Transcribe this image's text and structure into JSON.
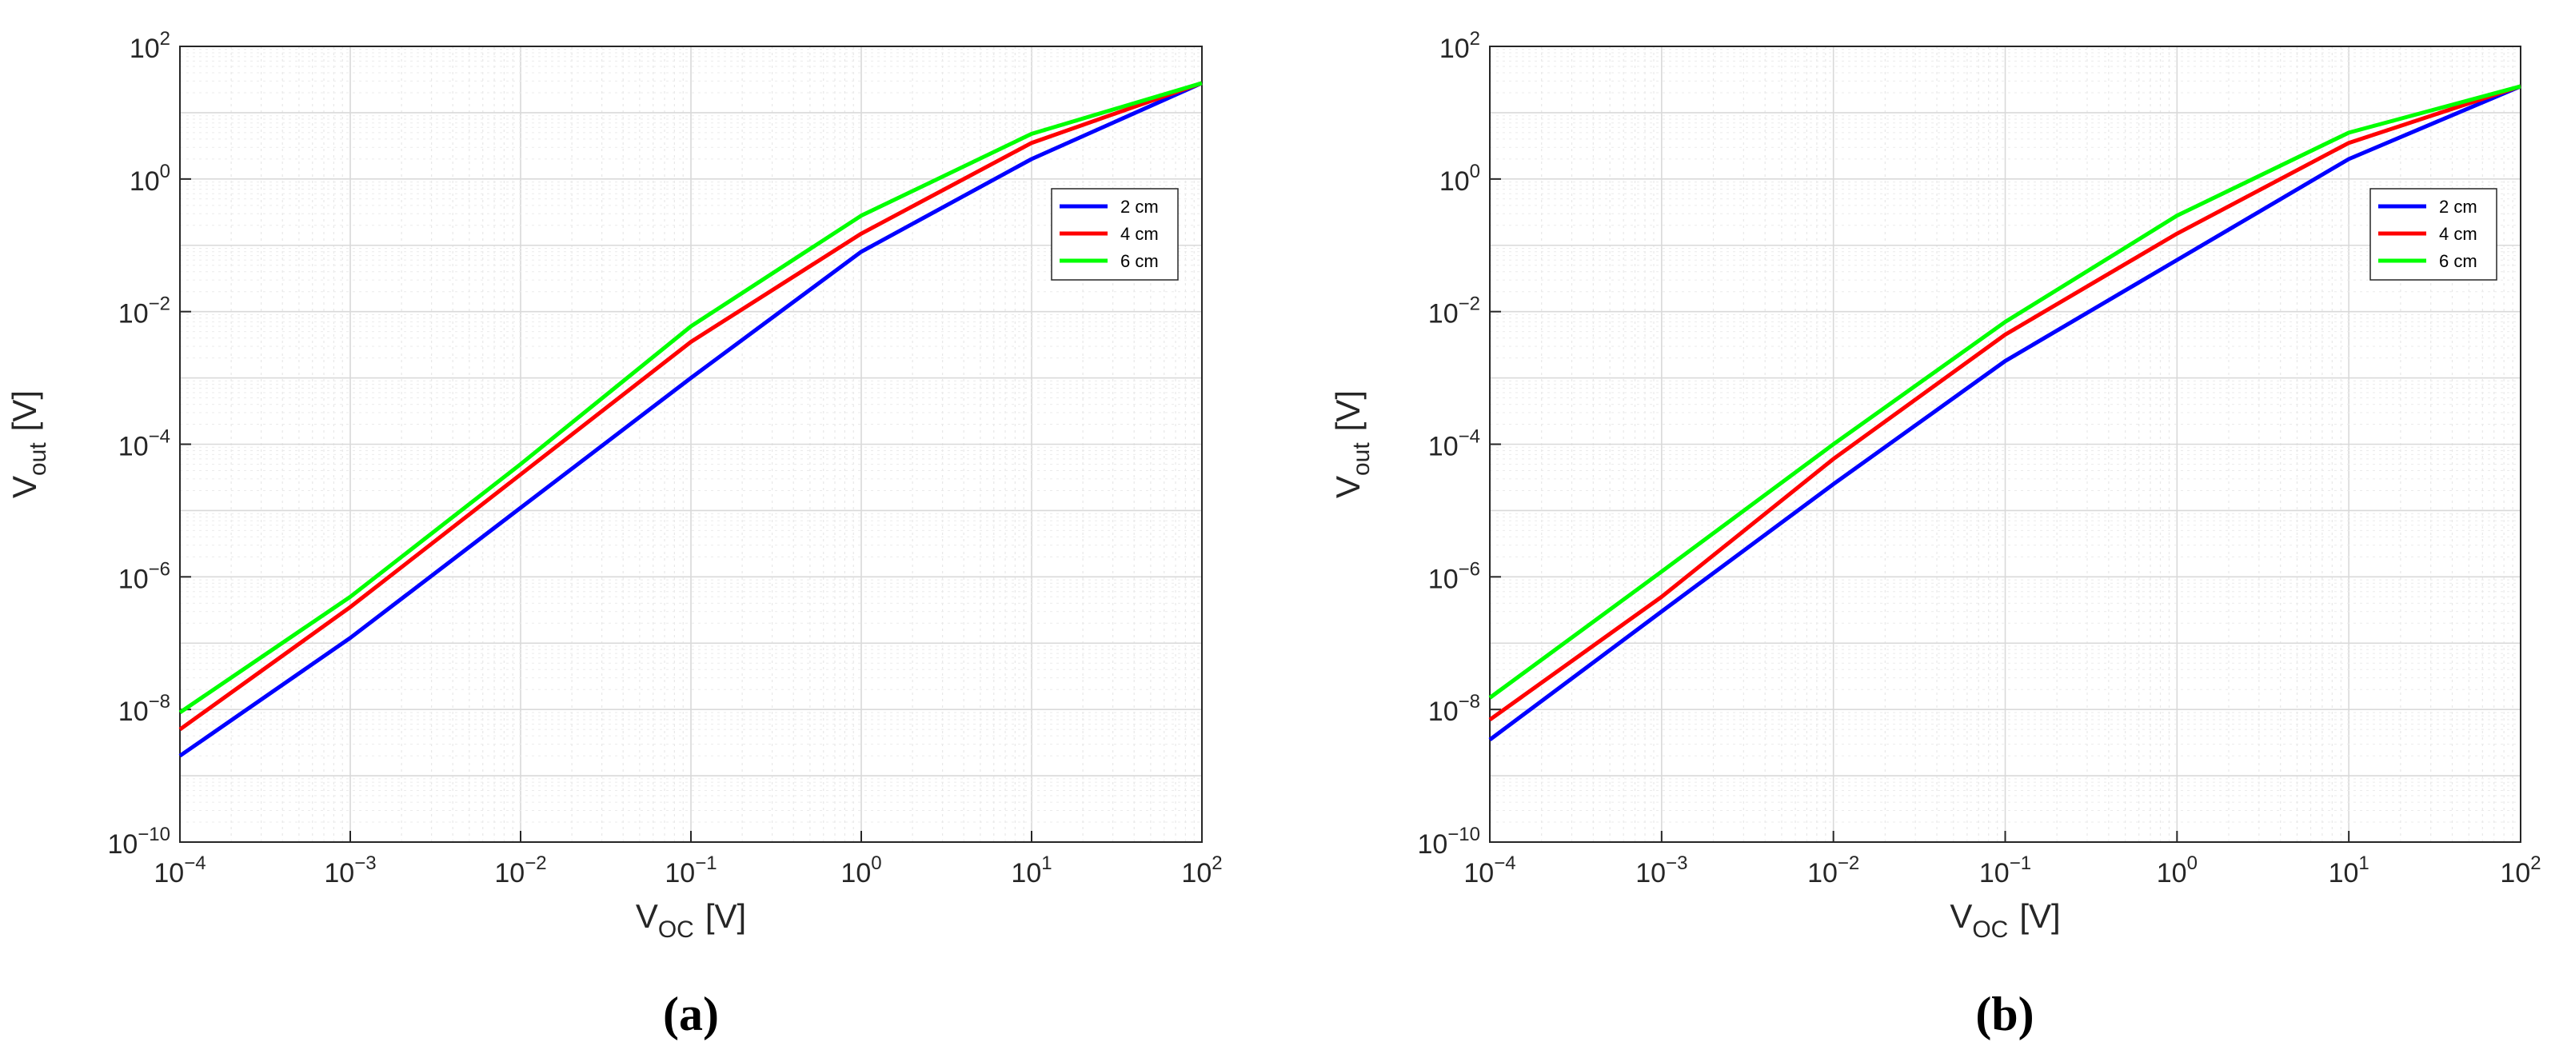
{
  "chart_data": [
    {
      "type": "line",
      "caption": "(a)",
      "xlabel": {
        "base": "V",
        "sub": "OC",
        "unit": "[V]"
      },
      "ylabel": {
        "base": "V",
        "sub": "out",
        "unit": "[V]"
      },
      "xscale": "log",
      "yscale": "log",
      "xlim": [
        0.0001,
        100
      ],
      "ylim": [
        1e-10,
        100
      ],
      "x_ticks": [
        {
          "base": "10",
          "exp": "−4"
        },
        {
          "base": "10",
          "exp": "−3"
        },
        {
          "base": "10",
          "exp": "−2"
        },
        {
          "base": "10",
          "exp": "−1"
        },
        {
          "base": "10",
          "exp": "0"
        },
        {
          "base": "10",
          "exp": "1"
        },
        {
          "base": "10",
          "exp": "2"
        }
      ],
      "y_ticks": [
        {
          "base": "10",
          "exp": "−10"
        },
        {
          "base": "10",
          "exp": "−8"
        },
        {
          "base": "10",
          "exp": "−6"
        },
        {
          "base": "10",
          "exp": "−4"
        },
        {
          "base": "10",
          "exp": "−2"
        },
        {
          "base": "10",
          "exp": "0"
        },
        {
          "base": "10",
          "exp": "2"
        }
      ],
      "grid": true,
      "legend_position": "upper-right",
      "x": [
        0.0001,
        0.001,
        0.01,
        0.1,
        1,
        10,
        100
      ],
      "series": [
        {
          "name": "2 cm",
          "color": "#0000ff",
          "values": [
            2e-09,
            1.2e-07,
            1.1e-05,
            0.001,
            0.08,
            2,
            28
          ]
        },
        {
          "name": "4 cm",
          "color": "#ff0000",
          "values": [
            5e-09,
            3.5e-07,
            3.5e-05,
            0.0035,
            0.15,
            3.5,
            28
          ]
        },
        {
          "name": "6 cm",
          "color": "#00ff00",
          "values": [
            9e-09,
            5e-07,
            5e-05,
            0.006,
            0.28,
            4.8,
            28
          ]
        }
      ]
    },
    {
      "type": "line",
      "caption": "(b)",
      "xlabel": {
        "base": "V",
        "sub": "OC",
        "unit": "[V]"
      },
      "ylabel": {
        "base": "V",
        "sub": "out",
        "unit": "[V]"
      },
      "xscale": "log",
      "yscale": "log",
      "xlim": [
        0.0001,
        100
      ],
      "ylim": [
        1e-10,
        100
      ],
      "x_ticks": [
        {
          "base": "10",
          "exp": "−4"
        },
        {
          "base": "10",
          "exp": "−3"
        },
        {
          "base": "10",
          "exp": "−2"
        },
        {
          "base": "10",
          "exp": "−1"
        },
        {
          "base": "10",
          "exp": "0"
        },
        {
          "base": "10",
          "exp": "1"
        },
        {
          "base": "10",
          "exp": "2"
        }
      ],
      "y_ticks": [
        {
          "base": "10",
          "exp": "−10"
        },
        {
          "base": "10",
          "exp": "−8"
        },
        {
          "base": "10",
          "exp": "−6"
        },
        {
          "base": "10",
          "exp": "−4"
        },
        {
          "base": "10",
          "exp": "−2"
        },
        {
          "base": "10",
          "exp": "0"
        },
        {
          "base": "10",
          "exp": "2"
        }
      ],
      "grid": true,
      "legend_position": "upper-right",
      "x": [
        0.0001,
        0.001,
        0.01,
        0.1,
        1,
        10,
        100
      ],
      "series": [
        {
          "name": "2 cm",
          "color": "#0000ff",
          "values": [
            3.5e-09,
            3e-07,
            2.5e-05,
            0.0018,
            0.06,
            2,
            25
          ]
        },
        {
          "name": "4 cm",
          "color": "#ff0000",
          "values": [
            7e-09,
            5e-07,
            6e-05,
            0.0045,
            0.15,
            3.5,
            25
          ]
        },
        {
          "name": "6 cm",
          "color": "#00ff00",
          "values": [
            1.5e-08,
            1.2e-06,
            0.0001,
            0.007,
            0.28,
            5,
            25
          ]
        }
      ]
    }
  ]
}
